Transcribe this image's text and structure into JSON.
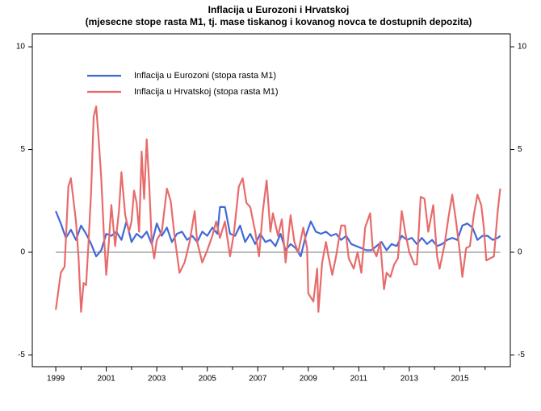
{
  "chart_data": {
    "type": "line",
    "title": "Inflacija u Eurozoni i Hrvatskoj",
    "subtitle": "(mjesecne stope rasta M1, tj. mase tiskanog i kovanog novca te dostupnih depozita)",
    "xlim": [
      1998.07,
      2017.0
    ],
    "ylim": [
      -5.57,
      10.63
    ],
    "xticks": [
      1999,
      2001,
      2003,
      2005,
      2007,
      2009,
      2011,
      2013,
      2015
    ],
    "xminorticks": [
      2000,
      2002,
      2004,
      2006,
      2008,
      2010,
      2012,
      2014,
      2016
    ],
    "yticks": [
      -5,
      0,
      5,
      10
    ],
    "hline": 0,
    "hline_color": "#bbbbbb",
    "legend": "top-left",
    "series": [
      {
        "name": "Inflacija u Eurozoni (stopa rasta M1)",
        "color": "#4169d8",
        "x": [
          1999.0,
          1999.2,
          1999.4,
          1999.6,
          1999.8,
          2000.0,
          2000.2,
          2000.4,
          2000.6,
          2000.8,
          2001.0,
          2001.2,
          2001.4,
          2001.6,
          2001.8,
          2002.0,
          2002.2,
          2002.4,
          2002.6,
          2002.8,
          2003.0,
          2003.2,
          2003.4,
          2003.6,
          2003.8,
          2004.0,
          2004.2,
          2004.4,
          2004.6,
          2004.8,
          2005.0,
          2005.2,
          2005.4,
          2005.5,
          2005.7,
          2005.9,
          2006.1,
          2006.3,
          2006.5,
          2006.7,
          2006.9,
          2007.1,
          2007.3,
          2007.5,
          2007.7,
          2007.9,
          2008.1,
          2008.3,
          2008.5,
          2008.7,
          2008.9,
          2009.1,
          2009.3,
          2009.5,
          2009.7,
          2009.9,
          2010.1,
          2010.3,
          2010.5,
          2010.7,
          2010.9,
          2011.1,
          2011.3,
          2011.5,
          2011.7,
          2011.9,
          2012.1,
          2012.3,
          2012.5,
          2012.7,
          2012.9,
          2013.1,
          2013.3,
          2013.5,
          2013.7,
          2013.9,
          2014.1,
          2014.3,
          2014.5,
          2014.7,
          2014.9,
          2015.1,
          2015.3,
          2015.5,
          2015.7,
          2015.9,
          2016.1,
          2016.3,
          2016.5,
          2016.6
        ],
        "values": [
          2.0,
          1.4,
          0.7,
          1.1,
          0.6,
          1.3,
          0.9,
          0.4,
          -0.2,
          0.1,
          0.9,
          0.8,
          1.0,
          0.6,
          1.5,
          0.5,
          0.9,
          0.7,
          1.0,
          0.4,
          1.4,
          0.8,
          1.2,
          0.5,
          0.9,
          1.0,
          0.6,
          0.8,
          0.5,
          1.0,
          0.8,
          1.2,
          0.9,
          2.2,
          2.2,
          0.9,
          0.8,
          1.3,
          0.5,
          0.9,
          0.4,
          0.9,
          0.5,
          0.6,
          0.3,
          0.9,
          0.1,
          0.4,
          0.2,
          -0.2,
          0.8,
          1.5,
          1.0,
          0.9,
          1.0,
          0.8,
          0.9,
          0.6,
          0.8,
          0.4,
          0.3,
          0.2,
          0.1,
          0.1,
          0.3,
          0.5,
          0.1,
          0.4,
          0.3,
          0.8,
          0.6,
          0.7,
          0.4,
          0.7,
          0.4,
          0.6,
          0.3,
          0.4,
          0.6,
          0.7,
          0.6,
          1.3,
          1.4,
          1.2,
          0.6,
          0.8,
          0.8,
          0.6,
          0.7,
          0.8
        ]
      },
      {
        "name": "Inflacija u Hrvatskoj (stopa rasta M1)",
        "color": "#e86b6b",
        "x": [
          1999.0,
          1999.2,
          1999.35,
          1999.5,
          1999.6,
          1999.8,
          1999.9,
          2000.0,
          2000.1,
          2000.2,
          2000.3,
          2000.4,
          2000.5,
          2000.6,
          2000.7,
          2000.8,
          2000.9,
          2001.0,
          2001.1,
          2001.2,
          2001.35,
          2001.5,
          2001.6,
          2001.75,
          2001.9,
          2002.0,
          2002.1,
          2002.2,
          2002.3,
          2002.4,
          2002.5,
          2002.6,
          2002.7,
          2002.8,
          2002.9,
          2003.0,
          2003.2,
          2003.4,
          2003.55,
          2003.7,
          2003.9,
          2004.1,
          2004.3,
          2004.5,
          2004.6,
          2004.8,
          2005.0,
          2005.2,
          2005.35,
          2005.5,
          2005.7,
          2005.9,
          2006.05,
          2006.25,
          2006.4,
          2006.55,
          2006.7,
          2006.9,
          2007.05,
          2007.2,
          2007.35,
          2007.5,
          2007.6,
          2007.8,
          2007.95,
          2008.1,
          2008.3,
          2008.45,
          2008.6,
          2008.8,
          2008.95,
          2009.0,
          2009.2,
          2009.35,
          2009.4,
          2009.55,
          2009.7,
          2009.8,
          2009.95,
          2010.1,
          2010.3,
          2010.45,
          2010.6,
          2010.8,
          2010.95,
          2011.1,
          2011.25,
          2011.45,
          2011.55,
          2011.7,
          2011.85,
          2012.0,
          2012.1,
          2012.25,
          2012.4,
          2012.55,
          2012.7,
          2012.85,
          2013.0,
          2013.2,
          2013.3,
          2013.45,
          2013.6,
          2013.75,
          2013.95,
          2014.1,
          2014.2,
          2014.4,
          2014.55,
          2014.7,
          2014.85,
          2015.0,
          2015.1,
          2015.25,
          2015.4,
          2015.55,
          2015.7,
          2015.85,
          2015.95,
          2016.05,
          2016.2,
          2016.35,
          2016.5,
          2016.6
        ],
        "values": [
          -2.8,
          -1.0,
          -0.7,
          3.2,
          3.6,
          1.5,
          -0.2,
          -2.9,
          -1.5,
          -1.6,
          0.5,
          3.0,
          6.6,
          7.1,
          5.5,
          3.6,
          1.0,
          -1.1,
          0.5,
          2.3,
          0.3,
          2.0,
          3.9,
          1.8,
          1.0,
          1.5,
          3.0,
          2.4,
          1.0,
          4.9,
          2.6,
          5.5,
          3.3,
          0.5,
          -0.3,
          0.6,
          1.0,
          3.1,
          2.5,
          0.8,
          -1.0,
          -0.5,
          0.5,
          2.0,
          0.5,
          -0.5,
          0.1,
          0.8,
          1.5,
          0.7,
          1.5,
          -0.2,
          0.9,
          3.2,
          3.6,
          2.4,
          2.2,
          1.0,
          -0.2,
          2.0,
          3.5,
          1.0,
          1.9,
          0.8,
          1.6,
          -0.5,
          1.8,
          0.5,
          0.0,
          1.2,
          0.2,
          -2.0,
          -2.4,
          -0.8,
          -2.9,
          -0.5,
          0.5,
          -0.2,
          -1.1,
          -0.2,
          1.3,
          1.3,
          -0.3,
          -0.8,
          0.0,
          -1.0,
          1.2,
          1.9,
          0.2,
          -0.2,
          0.5,
          -1.8,
          -1.0,
          -1.2,
          -0.6,
          -0.3,
          2.0,
          0.9,
          0.0,
          -0.6,
          -0.6,
          2.7,
          2.6,
          1.0,
          2.3,
          -0.2,
          -0.8,
          0.4,
          1.7,
          2.8,
          1.5,
          0.0,
          -1.2,
          0.2,
          0.3,
          1.8,
          2.8,
          2.3,
          1.2,
          -0.4,
          -0.3,
          -0.2,
          2.0,
          3.1
        ]
      }
    ]
  }
}
